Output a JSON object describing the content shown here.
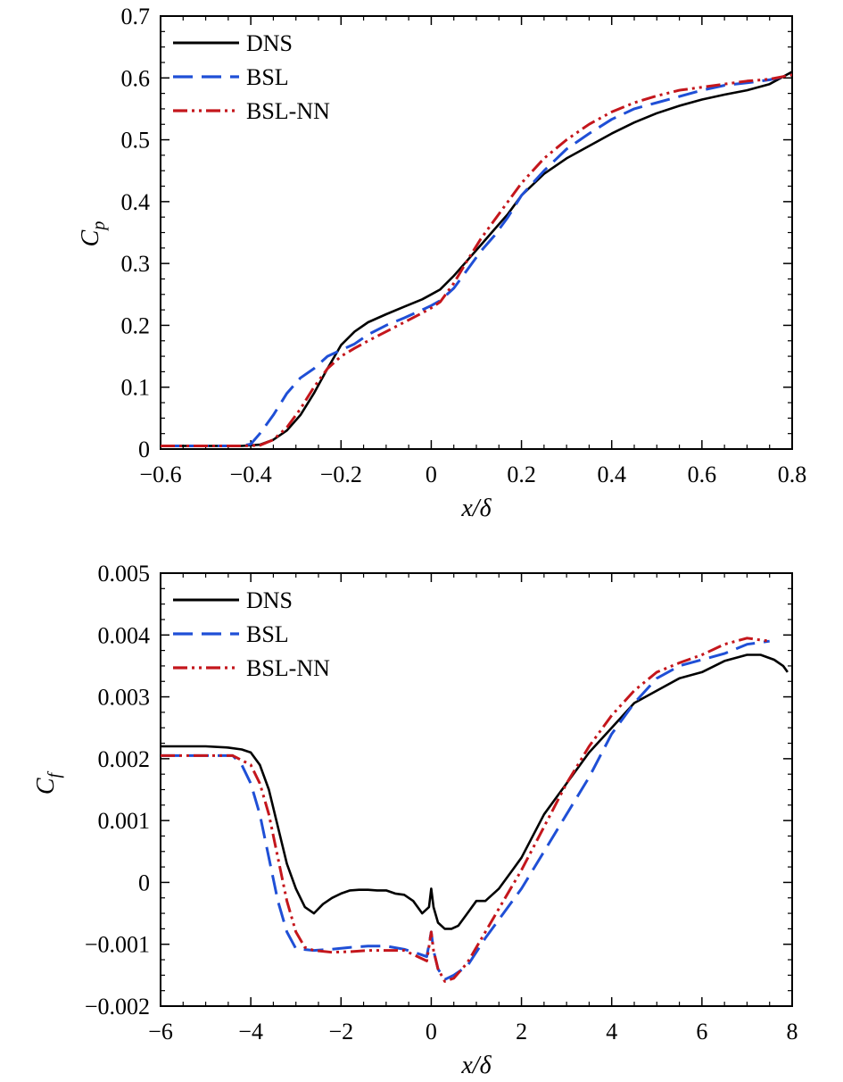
{
  "chart_data": [
    {
      "type": "line",
      "xlabel": "x/δ",
      "ylabel": "C",
      "ylabel_sub": "p",
      "xlim": [
        -0.6,
        0.8
      ],
      "ylim": [
        0,
        0.7
      ],
      "xticks": [
        -0.6,
        -0.4,
        -0.2,
        0,
        0.2,
        0.4,
        0.6,
        0.8
      ],
      "xtick_labels": [
        "−0.6",
        "−0.4",
        "−0.2",
        "0",
        "0.2",
        "0.4",
        "0.6",
        "0.8"
      ],
      "yticks": [
        0,
        0.1,
        0.2,
        0.3,
        0.4,
        0.5,
        0.6,
        0.7
      ],
      "ytick_labels": [
        "0",
        "0.1",
        "0.2",
        "0.3",
        "0.4",
        "0.5",
        "0.6",
        "0.7"
      ],
      "legend_position": "top-left",
      "series": [
        {
          "name": "DNS",
          "color": "#000000",
          "style": "solid",
          "x": [
            -0.6,
            -0.5,
            -0.42,
            -0.38,
            -0.35,
            -0.32,
            -0.29,
            -0.26,
            -0.23,
            -0.2,
            -0.17,
            -0.14,
            -0.1,
            -0.06,
            -0.02,
            0.0,
            0.02,
            0.05,
            0.08,
            0.11,
            0.14,
            0.17,
            0.2,
            0.25,
            0.3,
            0.35,
            0.4,
            0.45,
            0.5,
            0.55,
            0.6,
            0.65,
            0.7,
            0.75,
            0.8
          ],
          "y": [
            0.005,
            0.005,
            0.005,
            0.007,
            0.015,
            0.03,
            0.055,
            0.09,
            0.13,
            0.168,
            0.19,
            0.205,
            0.218,
            0.23,
            0.242,
            0.25,
            0.258,
            0.28,
            0.305,
            0.33,
            0.355,
            0.38,
            0.41,
            0.445,
            0.47,
            0.49,
            0.51,
            0.528,
            0.543,
            0.555,
            0.565,
            0.573,
            0.58,
            0.59,
            0.61
          ]
        },
        {
          "name": "BSL",
          "color": "#1f4fd6",
          "style": "dashed",
          "x": [
            -0.6,
            -0.5,
            -0.42,
            -0.4,
            -0.38,
            -0.35,
            -0.32,
            -0.29,
            -0.26,
            -0.23,
            -0.2,
            -0.17,
            -0.14,
            -0.1,
            -0.06,
            -0.02,
            0.0,
            0.02,
            0.05,
            0.08,
            0.11,
            0.14,
            0.17,
            0.2,
            0.25,
            0.3,
            0.35,
            0.4,
            0.45,
            0.5,
            0.55,
            0.6,
            0.65,
            0.7,
            0.75,
            0.8
          ],
          "y": [
            0.005,
            0.005,
            0.005,
            0.008,
            0.025,
            0.055,
            0.09,
            0.115,
            0.13,
            0.15,
            0.16,
            0.17,
            0.185,
            0.2,
            0.212,
            0.225,
            0.232,
            0.24,
            0.26,
            0.29,
            0.32,
            0.345,
            0.375,
            0.41,
            0.45,
            0.485,
            0.51,
            0.533,
            0.55,
            0.56,
            0.57,
            0.58,
            0.588,
            0.592,
            0.597,
            0.605
          ]
        },
        {
          "name": "BSL-NN",
          "color": "#c4161c",
          "style": "dashdotdot",
          "x": [
            -0.6,
            -0.5,
            -0.42,
            -0.38,
            -0.35,
            -0.32,
            -0.29,
            -0.26,
            -0.23,
            -0.2,
            -0.17,
            -0.14,
            -0.1,
            -0.06,
            -0.02,
            0.0,
            0.02,
            0.05,
            0.08,
            0.11,
            0.14,
            0.17,
            0.2,
            0.25,
            0.3,
            0.35,
            0.4,
            0.45,
            0.5,
            0.55,
            0.6,
            0.65,
            0.7,
            0.75,
            0.8
          ],
          "y": [
            0.005,
            0.005,
            0.005,
            0.006,
            0.015,
            0.035,
            0.065,
            0.1,
            0.13,
            0.15,
            0.163,
            0.175,
            0.19,
            0.205,
            0.22,
            0.228,
            0.238,
            0.268,
            0.305,
            0.34,
            0.37,
            0.4,
            0.43,
            0.47,
            0.5,
            0.525,
            0.545,
            0.56,
            0.571,
            0.58,
            0.585,
            0.59,
            0.595,
            0.598,
            0.605
          ]
        }
      ]
    },
    {
      "type": "line",
      "xlabel": "x/δ",
      "ylabel": "C",
      "ylabel_sub": "f",
      "xlim": [
        -6,
        8
      ],
      "ylim": [
        -0.002,
        0.005
      ],
      "xticks": [
        -6,
        -4,
        -2,
        0,
        2,
        4,
        6,
        8
      ],
      "xtick_labels": [
        "−6",
        "−4",
        "−2",
        "0",
        "2",
        "4",
        "6",
        "8"
      ],
      "yticks": [
        -0.002,
        -0.001,
        0,
        0.001,
        0.002,
        0.003,
        0.004,
        0.005
      ],
      "ytick_labels": [
        "−0.002",
        "−0.001",
        "0",
        "0.001",
        "0.002",
        "0.003",
        "0.004",
        "0.005"
      ],
      "legend_position": "top-left",
      "series": [
        {
          "name": "DNS",
          "color": "#000000",
          "style": "solid",
          "x": [
            -6,
            -5,
            -4.5,
            -4.2,
            -4.0,
            -3.8,
            -3.6,
            -3.4,
            -3.2,
            -3.0,
            -2.8,
            -2.6,
            -2.4,
            -2.2,
            -2.0,
            -1.8,
            -1.6,
            -1.4,
            -1.2,
            -1.0,
            -0.8,
            -0.6,
            -0.4,
            -0.2,
            -0.05,
            0.0,
            0.05,
            0.15,
            0.3,
            0.45,
            0.6,
            0.8,
            1.0,
            1.2,
            1.5,
            1.8,
            2.0,
            2.5,
            3.0,
            3.5,
            4.0,
            4.5,
            5.0,
            5.5,
            6.0,
            6.5,
            7.0,
            7.3,
            7.6,
            7.8,
            7.9
          ],
          "y": [
            0.0022,
            0.0022,
            0.00218,
            0.00215,
            0.0021,
            0.0019,
            0.0015,
            0.0009,
            0.0003,
            -0.0001,
            -0.0004,
            -0.0005,
            -0.00035,
            -0.00025,
            -0.00018,
            -0.00013,
            -0.00012,
            -0.00012,
            -0.00013,
            -0.00013,
            -0.00018,
            -0.0002,
            -0.0003,
            -0.0005,
            -0.0004,
            -0.0001,
            -0.0004,
            -0.00065,
            -0.00075,
            -0.00075,
            -0.0007,
            -0.0005,
            -0.0003,
            -0.0003,
            -0.0001,
            0.0002,
            0.0004,
            0.0011,
            0.0016,
            0.0021,
            0.0025,
            0.0029,
            0.0031,
            0.0033,
            0.0034,
            0.00358,
            0.00368,
            0.00368,
            0.0036,
            0.0035,
            0.0034
          ]
        },
        {
          "name": "BSL",
          "color": "#1f4fd6",
          "style": "dashed",
          "x": [
            -6,
            -5,
            -4.4,
            -4.2,
            -4.0,
            -3.8,
            -3.6,
            -3.4,
            -3.2,
            -3.0,
            -2.6,
            -2.2,
            -1.8,
            -1.4,
            -1.0,
            -0.6,
            -0.3,
            -0.1,
            0.0,
            0.05,
            0.15,
            0.3,
            0.5,
            0.8,
            1.2,
            1.6,
            2.0,
            2.5,
            3.0,
            3.5,
            4.0,
            4.5,
            5.0,
            5.5,
            6.0,
            6.5,
            7.0,
            7.5
          ],
          "y": [
            0.00205,
            0.00205,
            0.00205,
            0.0019,
            0.0016,
            0.0011,
            0.0004,
            -0.0003,
            -0.0008,
            -0.00107,
            -0.0011,
            -0.00108,
            -0.00105,
            -0.00103,
            -0.00103,
            -0.00108,
            -0.00115,
            -0.0012,
            -0.0008,
            -0.0011,
            -0.0014,
            -0.00157,
            -0.0015,
            -0.00135,
            -0.0009,
            -0.0005,
            -0.0001,
            0.0005,
            0.0011,
            0.0017,
            0.0024,
            0.0029,
            0.0033,
            0.0035,
            0.0036,
            0.0037,
            0.00385,
            0.0039
          ]
        },
        {
          "name": "BSL-NN",
          "color": "#c4161c",
          "style": "dashdotdot",
          "x": [
            -6,
            -5,
            -4.4,
            -4.0,
            -3.8,
            -3.6,
            -3.4,
            -3.2,
            -3.0,
            -2.8,
            -2.6,
            -2.2,
            -1.8,
            -1.4,
            -1.0,
            -0.6,
            -0.3,
            -0.1,
            0.0,
            0.05,
            0.15,
            0.3,
            0.5,
            0.8,
            1.2,
            1.6,
            2.0,
            2.5,
            3.0,
            3.5,
            4.0,
            4.5,
            5.0,
            5.5,
            6.0,
            6.5,
            7.0,
            7.5
          ],
          "y": [
            0.00205,
            0.00205,
            0.00205,
            0.0019,
            0.0016,
            0.0011,
            0.0004,
            -0.0003,
            -0.0008,
            -0.00105,
            -0.0011,
            -0.00113,
            -0.00112,
            -0.0011,
            -0.0011,
            -0.0011,
            -0.0012,
            -0.00127,
            -0.0008,
            -0.0011,
            -0.0014,
            -0.0016,
            -0.00155,
            -0.0013,
            -0.0008,
            -0.0003,
            0.0002,
            0.0009,
            0.0016,
            0.0022,
            0.0027,
            0.0031,
            0.0034,
            0.00355,
            0.00368,
            0.00385,
            0.00395,
            0.0039
          ]
        }
      ]
    }
  ]
}
